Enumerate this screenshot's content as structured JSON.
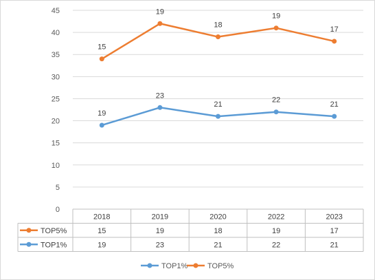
{
  "chart_data": {
    "type": "line",
    "categories": [
      "2018",
      "2019",
      "2020",
      "2022",
      "2023"
    ],
    "series": [
      {
        "name": "TOP1%",
        "values": [
          19,
          23,
          21,
          22,
          21
        ],
        "color": "#5b9bd5",
        "labels": [
          "19",
          "23",
          "21",
          "22",
          "21"
        ]
      },
      {
        "name": "TOP5%",
        "values": [
          34,
          42,
          39,
          41,
          38
        ],
        "color": "#ed7d31",
        "labels": [
          "15",
          "19",
          "18",
          "19",
          "17"
        ]
      }
    ],
    "ylim": [
      0,
      45
    ],
    "yticks": [
      "0",
      "5",
      "10",
      "15",
      "20",
      "25",
      "30",
      "35",
      "40",
      "45"
    ],
    "data_table": [
      {
        "name": "TOP5%",
        "values": [
          "15",
          "19",
          "18",
          "19",
          "17"
        ]
      },
      {
        "name": "TOP1%",
        "values": [
          "19",
          "23",
          "21",
          "22",
          "21"
        ]
      }
    ],
    "legend": {
      "position": "bottom",
      "entries": [
        "TOP1%",
        "TOP5%"
      ]
    },
    "grid": true,
    "title": "",
    "xlabel": "",
    "ylabel": ""
  }
}
